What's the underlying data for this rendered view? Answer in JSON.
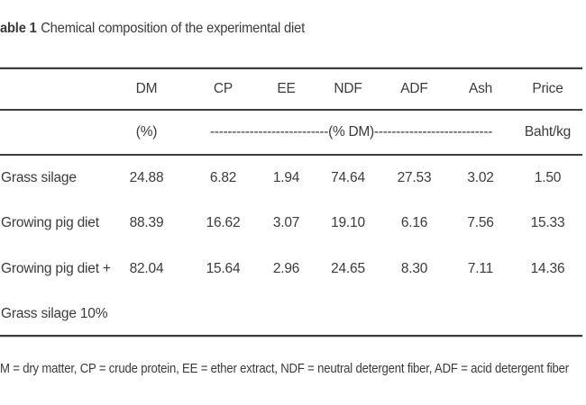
{
  "caption": {
    "number": "able 1",
    "text": "Chemical composition of the experimental diet"
  },
  "table": {
    "columns": [
      "",
      "DM",
      "CP",
      "EE",
      "NDF",
      "ADF",
      "Ash",
      "Price"
    ],
    "subheader": {
      "dm_unit": "(%)",
      "dm_span": "---------------------------(% DM)---------------------------",
      "price_unit": "Baht/kg"
    },
    "rows": [
      {
        "label": "Grass silage",
        "values": [
          "24.88",
          "6.82",
          "1.94",
          "74.64",
          "27.53",
          "3.02",
          "1.50"
        ]
      },
      {
        "label": "Growing pig diet",
        "values": [
          "88.39",
          "16.62",
          "3.07",
          "19.10",
          "6.16",
          "7.56",
          "15.33"
        ]
      },
      {
        "label": "Growing pig diet +",
        "label_line2": "Grass silage 10%",
        "values": [
          "82.04",
          "15.64",
          "2.96",
          "24.65",
          "8.30",
          "7.11",
          "14.36"
        ]
      }
    ]
  },
  "footnote": "M = dry matter, CP = crude protein, EE = ether extract, NDF = neutral detergent fiber, ADF = acid detergent fiber",
  "colors": {
    "text": "#3b3b3b",
    "rule": "#3d3d3d",
    "background": "#ffffff"
  }
}
